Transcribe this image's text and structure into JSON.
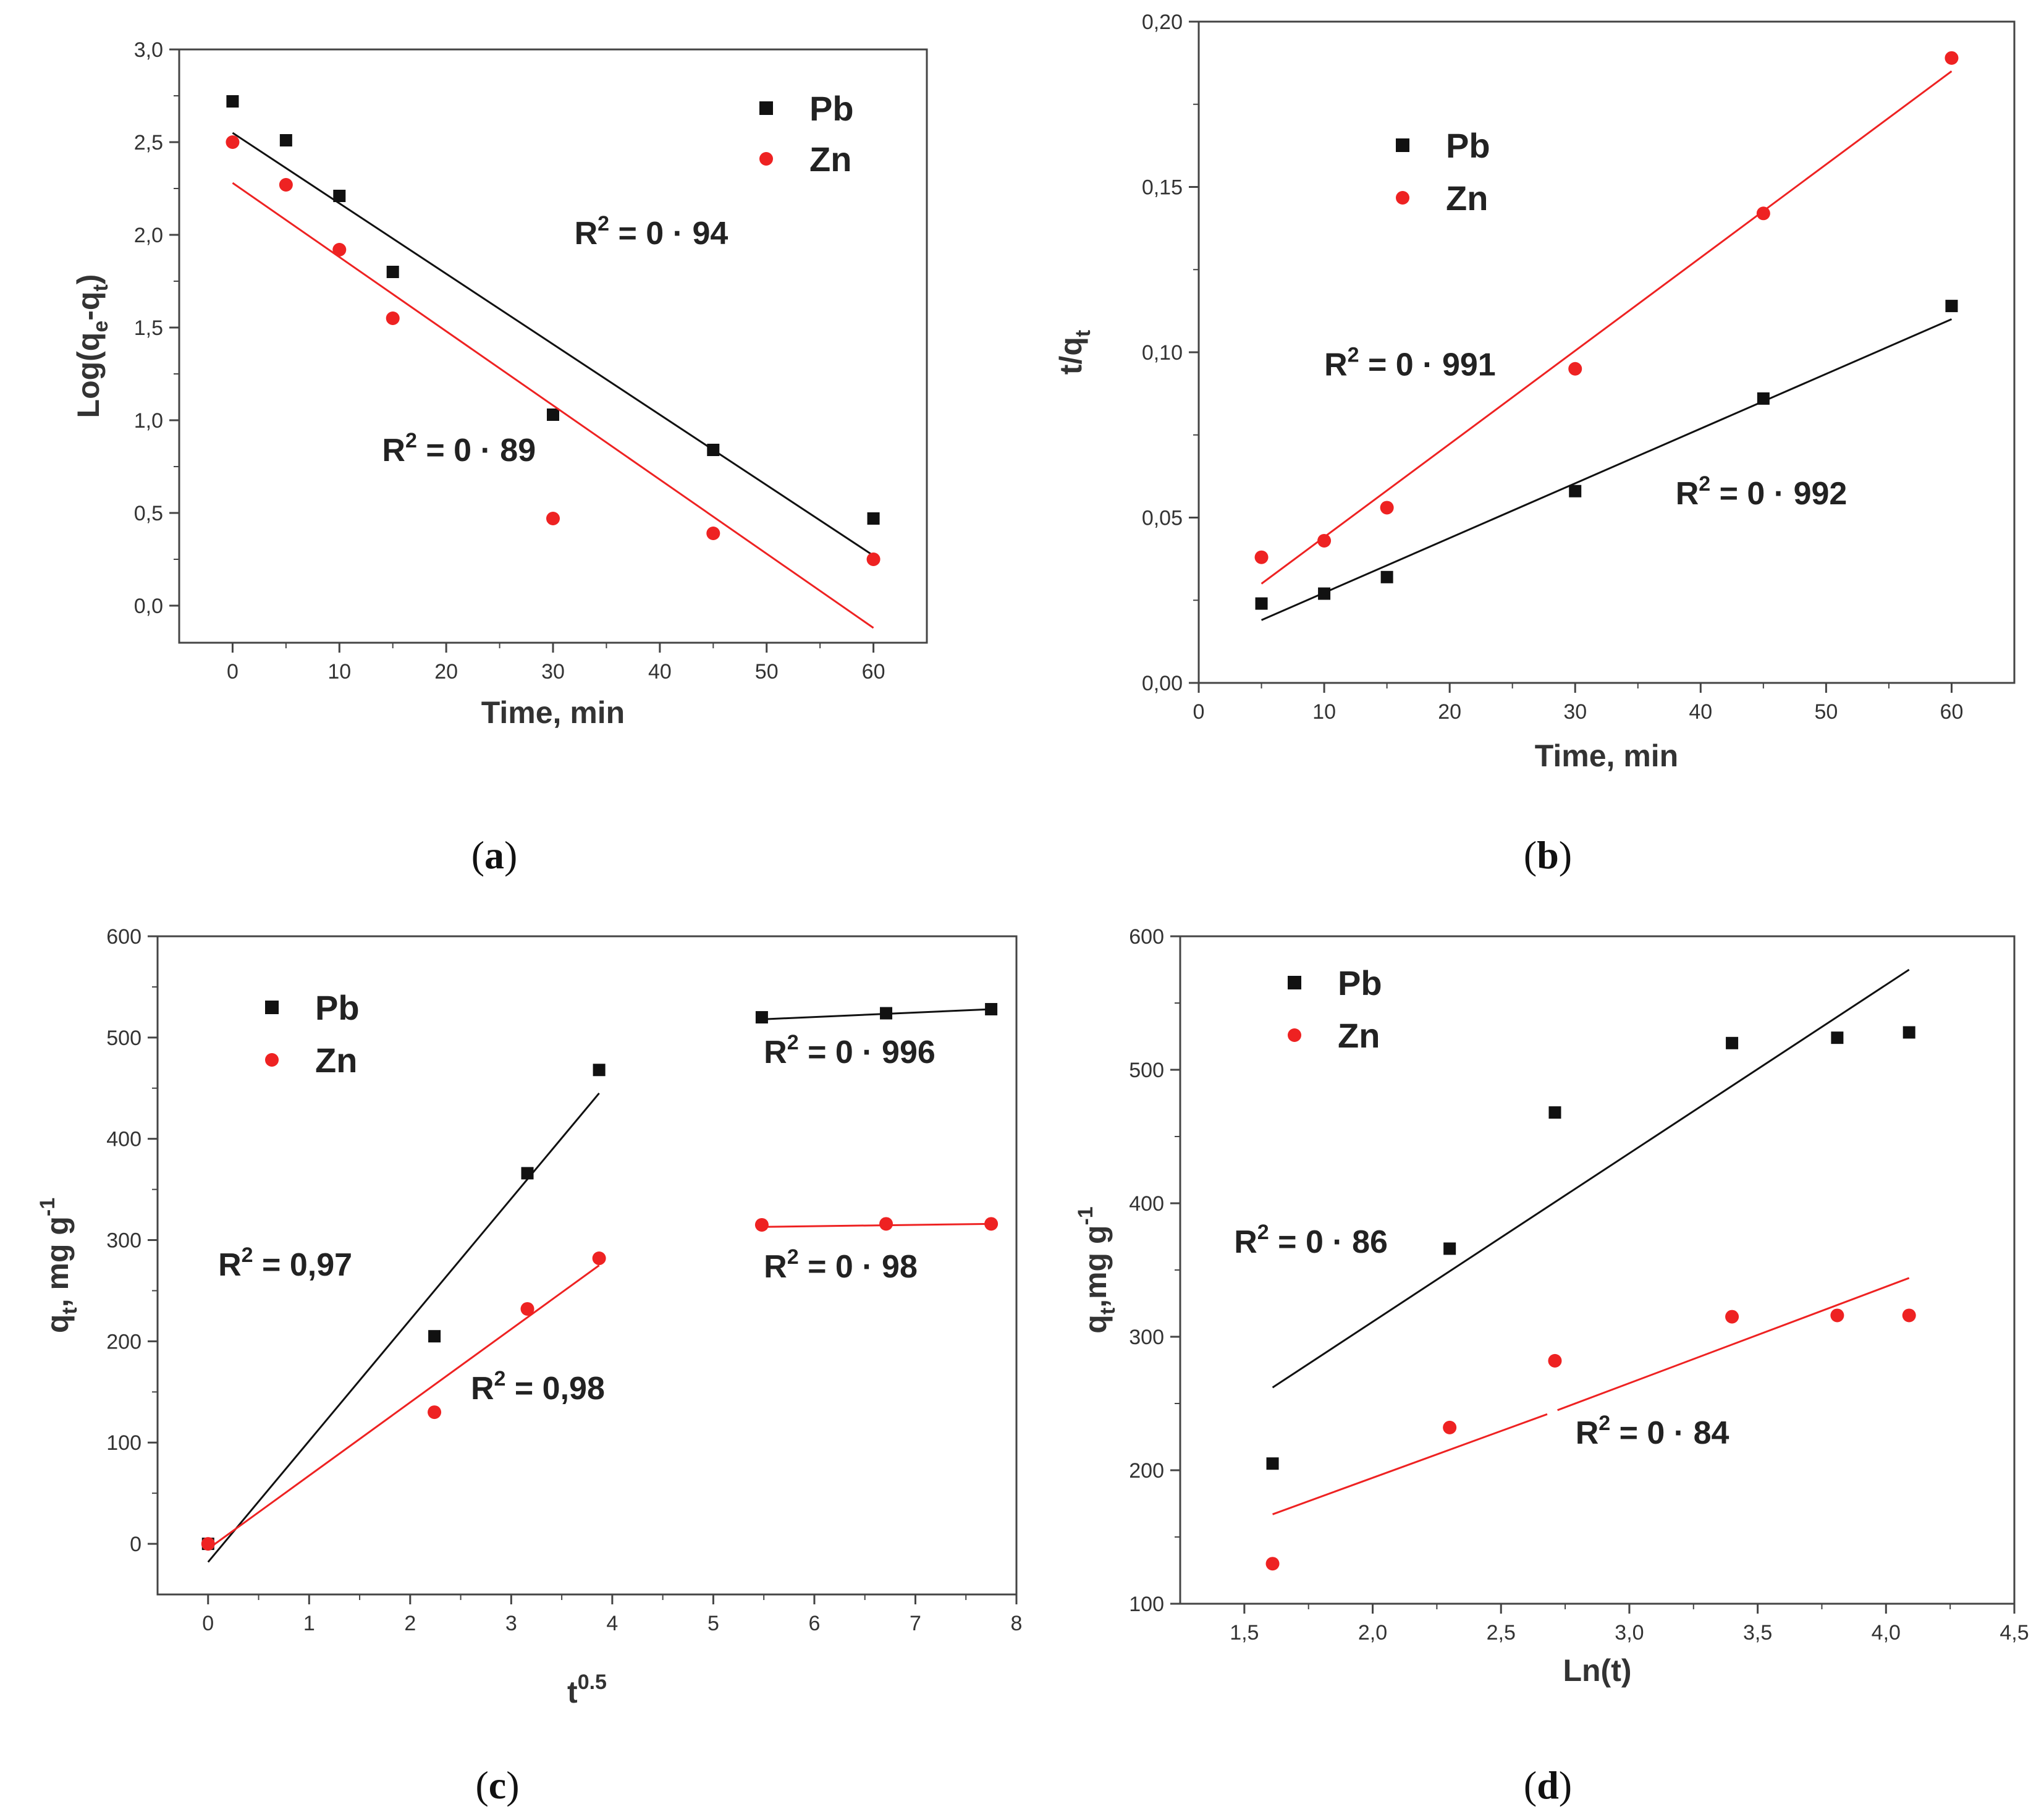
{
  "colors": {
    "pb": "#111111",
    "zn": "#ee2222"
  },
  "chart_data": [
    {
      "type": "scatter",
      "caption": "a",
      "xlabel": "Time, min",
      "ylabel": "Log(qe-qt)",
      "ylabel_parts": {
        "main": "Log(q",
        "sub1": "e",
        "mid": "-q",
        "sub2": "t",
        "end": ")"
      },
      "xlim": [
        -5,
        65
      ],
      "ylim": [
        -0.2,
        3.0
      ],
      "xticks": [
        0,
        10,
        20,
        30,
        40,
        50,
        60
      ],
      "xtick_labels": [
        "0",
        "10",
        "20",
        "30",
        "40",
        "50",
        "60"
      ],
      "yticks": [
        0.0,
        0.5,
        1.0,
        1.5,
        2.0,
        2.5,
        3.0
      ],
      "ytick_labels": [
        "0,0",
        "0,5",
        "1,0",
        "1,5",
        "2,0",
        "2,5",
        "3,0"
      ],
      "legend": [
        "Pb",
        "Zn"
      ],
      "series": [
        {
          "name": "Pb",
          "x": [
            0,
            5,
            10,
            15,
            30,
            45,
            60
          ],
          "y": [
            2.72,
            2.51,
            2.21,
            1.8,
            1.03,
            0.84,
            0.47
          ],
          "fits": [
            {
              "x": [
                0,
                60
              ],
              "y": [
                2.55,
                0.27
              ]
            }
          ]
        },
        {
          "name": "Zn",
          "x": [
            0,
            5,
            10,
            15,
            30,
            45,
            60
          ],
          "y": [
            2.5,
            2.27,
            1.92,
            1.55,
            0.47,
            0.39,
            0.25
          ],
          "fits": [
            {
              "x": [
                0,
                60
              ],
              "y": [
                2.28,
                -0.12
              ]
            }
          ]
        }
      ],
      "annotations": [
        {
          "base": "R",
          "sup": "2",
          "rest": " = 0 · 94",
          "x": 32,
          "y": 1.95
        },
        {
          "base": "R",
          "sup": "2",
          "rest": " = 0 · 89",
          "x": 14,
          "y": 0.78
        }
      ]
    },
    {
      "type": "scatter",
      "caption": "b",
      "xlabel": "Time, min",
      "ylabel": "t/qt",
      "ylabel_parts": {
        "main": "t/q",
        "sub1": "t"
      },
      "xlim": [
        0,
        65
      ],
      "ylim": [
        0.0,
        0.2
      ],
      "xticks": [
        0,
        10,
        20,
        30,
        40,
        50,
        60
      ],
      "xtick_labels": [
        "0",
        "10",
        "20",
        "30",
        "40",
        "50",
        "60"
      ],
      "yticks": [
        0.0,
        0.05,
        0.1,
        0.15,
        0.2
      ],
      "ytick_labels": [
        "0,00",
        "0,05",
        "0,10",
        "0,15",
        "0,20"
      ],
      "legend": [
        "Pb",
        "Zn"
      ],
      "series": [
        {
          "name": "Pb",
          "x": [
            5,
            10,
            15,
            30,
            45,
            60
          ],
          "y": [
            0.024,
            0.027,
            0.032,
            0.058,
            0.086,
            0.114
          ],
          "fits": [
            {
              "x": [
                5,
                60
              ],
              "y": [
                0.019,
                0.11
              ]
            }
          ]
        },
        {
          "name": "Zn",
          "x": [
            5,
            10,
            15,
            30,
            45,
            60
          ],
          "y": [
            0.038,
            0.043,
            0.053,
            0.095,
            0.142,
            0.189
          ],
          "fits": [
            {
              "x": [
                5,
                60
              ],
              "y": [
                0.03,
                0.185
              ]
            }
          ]
        }
      ],
      "annotations": [
        {
          "base": "R",
          "sup": "2",
          "rest": " = 0 · 991",
          "x": 10,
          "y": 0.093
        },
        {
          "base": "R",
          "sup": "2",
          "rest": " = 0 · 992",
          "x": 38,
          "y": 0.054
        }
      ]
    },
    {
      "type": "scatter",
      "caption": "c",
      "xlabel": "t0.5",
      "xlabel_parts": {
        "main": "t",
        "sup": "0.5"
      },
      "ylabel": "qt, mg g-1",
      "ylabel_parts": {
        "main": "q",
        "sub1": "t",
        "mid": ", mg g",
        "sup": "-1"
      },
      "xlim": [
        -0.5,
        8
      ],
      "ylim": [
        -50,
        600
      ],
      "xticks": [
        0,
        1,
        2,
        3,
        4,
        5,
        6,
        7,
        8
      ],
      "xtick_labels": [
        "0",
        "1",
        "2",
        "3",
        "4",
        "5",
        "6",
        "7",
        "8"
      ],
      "yticks": [
        0,
        100,
        200,
        300,
        400,
        500,
        600
      ],
      "ytick_labels": [
        "0",
        "100",
        "200",
        "300",
        "400",
        "500",
        "600"
      ],
      "legend": [
        "Pb",
        "Zn"
      ],
      "series": [
        {
          "name": "Pb",
          "x": [
            0,
            2.24,
            3.16,
            3.87,
            5.48,
            6.71,
            7.75
          ],
          "y": [
            0,
            205,
            366,
            468,
            520,
            524,
            528
          ],
          "fits": [
            {
              "x": [
                0,
                3.87
              ],
              "y": [
                -18,
                445
              ]
            },
            {
              "x": [
                5.48,
                7.75
              ],
              "y": [
                518,
                528
              ]
            }
          ]
        },
        {
          "name": "Zn",
          "x": [
            0,
            2.24,
            3.16,
            3.87,
            5.48,
            6.71,
            7.75
          ],
          "y": [
            0,
            130,
            232,
            282,
            315,
            316,
            316
          ],
          "fits": [
            {
              "x": [
                0,
                3.87
              ],
              "y": [
                -5,
                275
              ]
            },
            {
              "x": [
                5.48,
                7.75
              ],
              "y": [
                313,
                316
              ]
            }
          ]
        }
      ],
      "annotations": [
        {
          "base": "R",
          "sup": "2",
          "rest": " = 0,97",
          "x": 0.1,
          "y": 265
        },
        {
          "base": "R",
          "sup": "2",
          "rest": " = 0 · 996",
          "x": 5.5,
          "y": 475
        },
        {
          "base": "R",
          "sup": "2",
          "rest": " = 0,98",
          "x": 2.6,
          "y": 143
        },
        {
          "base": "R",
          "sup": "2",
          "rest": " = 0 · 98",
          "x": 5.5,
          "y": 263
        }
      ]
    },
    {
      "type": "scatter",
      "caption": "d",
      "xlabel": "Ln(t)",
      "ylabel": "qt,mg g-1",
      "ylabel_parts": {
        "main": "q",
        "sub1": "t",
        "mid": ",mg g",
        "sup": "-1"
      },
      "xlim": [
        1.25,
        4.5
      ],
      "ylim": [
        100,
        600
      ],
      "xticks": [
        1.5,
        2.0,
        2.5,
        3.0,
        3.5,
        4.0,
        4.5
      ],
      "xtick_labels": [
        "1,5",
        "2,0",
        "2,5",
        "3,0",
        "3,5",
        "4,0",
        "4,5"
      ],
      "yticks": [
        100,
        200,
        300,
        400,
        500,
        600
      ],
      "ytick_labels": [
        "100",
        "200",
        "300",
        "400",
        "500",
        "600"
      ],
      "legend": [
        "Pb",
        "Zn"
      ],
      "series": [
        {
          "name": "Pb",
          "x": [
            1.61,
            2.3,
            2.71,
            3.4,
            3.81,
            4.09
          ],
          "y": [
            205,
            366,
            468,
            520,
            524,
            528
          ],
          "fits": [
            {
              "x": [
                1.61,
                4.09
              ],
              "y": [
                262,
                575
              ]
            }
          ]
        },
        {
          "name": "Zn",
          "x": [
            1.61,
            2.3,
            2.71,
            3.4,
            3.81,
            4.09
          ],
          "y": [
            130,
            232,
            282,
            315,
            316,
            316
          ],
          "fits": [
            {
              "x": [
                1.61,
                2.68
              ],
              "y": [
                167,
                242
              ]
            },
            {
              "x": [
                2.72,
                4.09
              ],
              "y": [
                245,
                344
              ]
            }
          ]
        }
      ],
      "annotations": [
        {
          "base": "R",
          "sup": "2",
          "rest": " = 0 · 86",
          "x": 1.46,
          "y": 363
        },
        {
          "base": "R",
          "sup": "2",
          "rest": " = 0 · 84",
          "x": 2.79,
          "y": 220
        }
      ]
    }
  ]
}
